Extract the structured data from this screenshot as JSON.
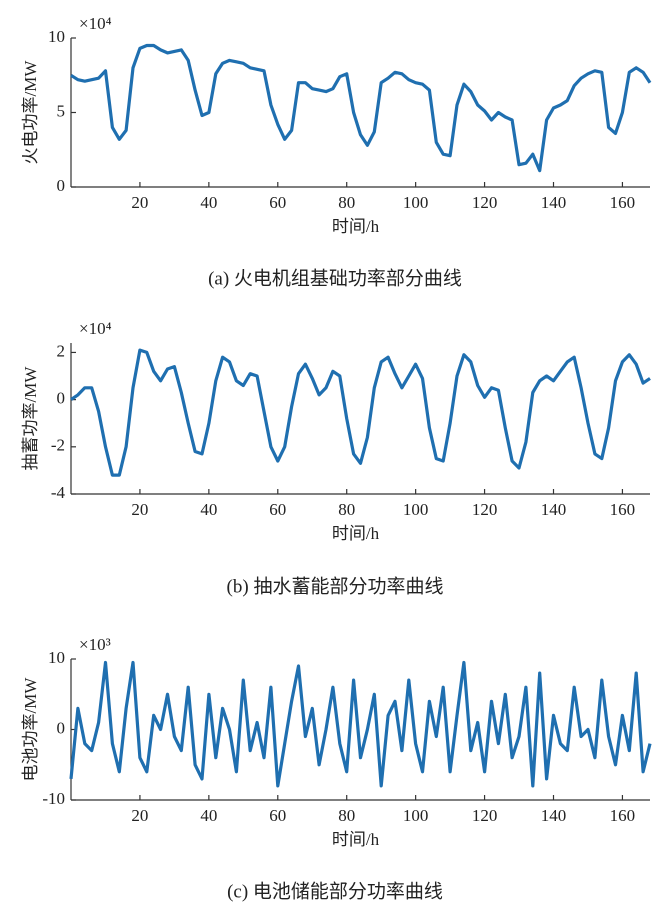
{
  "chart_data": [
    {
      "type": "line",
      "multiplier": "×10⁴",
      "ylabel": "火电功率/MW",
      "xlabel": "时间/h",
      "caption": "(a)  火电机组基础功率部分曲线",
      "xlim": [
        0,
        168
      ],
      "xticks": [
        20,
        40,
        60,
        80,
        100,
        120,
        140,
        160
      ],
      "ylim": [
        0,
        10
      ],
      "yticks": [
        0,
        5,
        10
      ],
      "x": [
        0,
        2,
        4,
        6,
        8,
        10,
        12,
        14,
        16,
        18,
        20,
        22,
        24,
        26,
        28,
        30,
        32,
        34,
        36,
        38,
        40,
        42,
        44,
        46,
        48,
        50,
        52,
        54,
        56,
        58,
        60,
        62,
        64,
        66,
        68,
        70,
        72,
        74,
        76,
        78,
        80,
        82,
        84,
        86,
        88,
        90,
        92,
        94,
        96,
        98,
        100,
        102,
        104,
        106,
        108,
        110,
        112,
        114,
        116,
        118,
        120,
        122,
        124,
        126,
        128,
        130,
        132,
        134,
        136,
        138,
        140,
        142,
        144,
        146,
        148,
        150,
        152,
        154,
        156,
        158,
        160,
        162,
        164,
        166,
        168
      ],
      "series": [
        {
          "color": "#1f6fb0",
          "values": [
            7.5,
            7.2,
            7.1,
            7.2,
            7.3,
            7.8,
            4,
            3.2,
            3.8,
            8,
            9.3,
            9.5,
            9.5,
            9.2,
            9.0,
            9.1,
            9.2,
            8.5,
            6.5,
            4.8,
            5,
            7.6,
            8.3,
            8.5,
            8.4,
            8.3,
            8.0,
            7.9,
            7.8,
            5.5,
            4.2,
            3.2,
            3.8,
            7,
            7,
            6.6,
            6.5,
            6.4,
            6.6,
            7.4,
            7.6,
            5,
            3.5,
            2.8,
            3.7,
            7,
            7.3,
            7.7,
            7.6,
            7.2,
            7.0,
            6.9,
            6.5,
            3,
            2.2,
            2.1,
            5.5,
            6.9,
            6.4,
            5.5,
            5.1,
            4.5,
            5,
            4.7,
            4.5,
            1.5,
            1.6,
            2.2,
            1.1,
            4.5,
            5.3,
            5.5,
            5.8,
            6.8,
            7.3,
            7.6,
            7.8,
            7.7,
            4,
            3.6,
            5,
            7.7,
            8,
            7.7,
            7
          ]
        }
      ]
    },
    {
      "type": "line",
      "multiplier": "×10⁴",
      "ylabel": "抽蓄功率/MW",
      "xlabel": "时间/h",
      "caption": "(b)  抽水蓄能部分功率曲线",
      "xlim": [
        0,
        168
      ],
      "xticks": [
        20,
        40,
        60,
        80,
        100,
        120,
        140,
        160
      ],
      "ylim": [
        -4,
        2.4
      ],
      "yticks": [
        -4,
        -2,
        0,
        2
      ],
      "x": [
        0,
        2,
        4,
        6,
        8,
        10,
        12,
        14,
        16,
        18,
        20,
        22,
        24,
        26,
        28,
        30,
        32,
        34,
        36,
        38,
        40,
        42,
        44,
        46,
        48,
        50,
        52,
        54,
        56,
        58,
        60,
        62,
        64,
        66,
        68,
        70,
        72,
        74,
        76,
        78,
        80,
        82,
        84,
        86,
        88,
        90,
        92,
        94,
        96,
        98,
        100,
        102,
        104,
        106,
        108,
        110,
        112,
        114,
        116,
        118,
        120,
        122,
        124,
        126,
        128,
        130,
        132,
        134,
        136,
        138,
        140,
        142,
        144,
        146,
        148,
        150,
        152,
        154,
        156,
        158,
        160,
        162,
        164,
        166,
        168
      ],
      "series": [
        {
          "color": "#1f6fb0",
          "values": [
            0,
            0.2,
            0.5,
            0.5,
            -0.5,
            -2,
            -3.2,
            -3.2,
            -2,
            0.5,
            2.1,
            2,
            1.2,
            0.8,
            1.3,
            1.4,
            0.3,
            -1,
            -2.2,
            -2.3,
            -1,
            0.8,
            1.8,
            1.6,
            0.8,
            0.6,
            1.1,
            1.0,
            -0.5,
            -2,
            -2.6,
            -2,
            -0.3,
            1.1,
            1.5,
            0.9,
            0.2,
            0.5,
            1.2,
            1.0,
            -0.8,
            -2.3,
            -2.7,
            -1.6,
            0.5,
            1.6,
            1.8,
            1.1,
            0.5,
            1.0,
            1.5,
            0.9,
            -1.2,
            -2.5,
            -2.6,
            -1,
            1,
            1.9,
            1.6,
            0.6,
            0.1,
            0.5,
            0.4,
            -1.2,
            -2.6,
            -2.9,
            -1.8,
            0.3,
            0.8,
            1.0,
            0.8,
            1.2,
            1.6,
            1.8,
            0.5,
            -1,
            -2.3,
            -2.5,
            -1.2,
            0.8,
            1.6,
            1.9,
            1.5,
            0.7,
            0.9
          ]
        }
      ]
    },
    {
      "type": "line",
      "multiplier": "×10³",
      "ylabel": "电池功率/MW",
      "xlabel": "时间/h",
      "caption": "(c)  电池储能部分功率曲线",
      "xlim": [
        0,
        168
      ],
      "xticks": [
        20,
        40,
        60,
        80,
        100,
        120,
        140,
        160
      ],
      "ylim": [
        -10,
        10
      ],
      "yticks": [
        -10,
        0,
        10
      ],
      "x": [
        0,
        2,
        4,
        6,
        8,
        10,
        12,
        14,
        16,
        18,
        20,
        22,
        24,
        26,
        28,
        30,
        32,
        34,
        36,
        38,
        40,
        42,
        44,
        46,
        48,
        50,
        52,
        54,
        56,
        58,
        60,
        62,
        64,
        66,
        68,
        70,
        72,
        74,
        76,
        78,
        80,
        82,
        84,
        86,
        88,
        90,
        92,
        94,
        96,
        98,
        100,
        102,
        104,
        106,
        108,
        110,
        112,
        114,
        116,
        118,
        120,
        122,
        124,
        126,
        128,
        130,
        132,
        134,
        136,
        138,
        140,
        142,
        144,
        146,
        148,
        150,
        152,
        154,
        156,
        158,
        160,
        162,
        164,
        166,
        168
      ],
      "series": [
        {
          "color": "#1f6fb0",
          "values": [
            -7,
            3,
            -2,
            -3,
            1,
            9.5,
            -2,
            -6,
            3,
            9.5,
            -4,
            -6,
            2,
            0,
            5,
            -1,
            -3,
            6,
            -5,
            -7,
            5,
            -4,
            3,
            0,
            -6,
            7,
            -3,
            1,
            -4,
            6,
            -8,
            -2,
            4,
            9,
            -1,
            3,
            -5,
            0,
            6,
            -2,
            -6,
            7,
            -4,
            0,
            5,
            -8,
            2,
            4,
            -3,
            7,
            -2,
            -6,
            4,
            -1,
            6,
            -6,
            2,
            9.5,
            -3,
            1,
            -6,
            4,
            -2,
            5,
            -4,
            -1,
            6,
            -8,
            8,
            -7,
            2,
            -2,
            -3,
            6,
            -1,
            0,
            -4,
            7,
            -1,
            -5,
            2,
            -3,
            8,
            -6,
            -2
          ]
        }
      ]
    }
  ]
}
